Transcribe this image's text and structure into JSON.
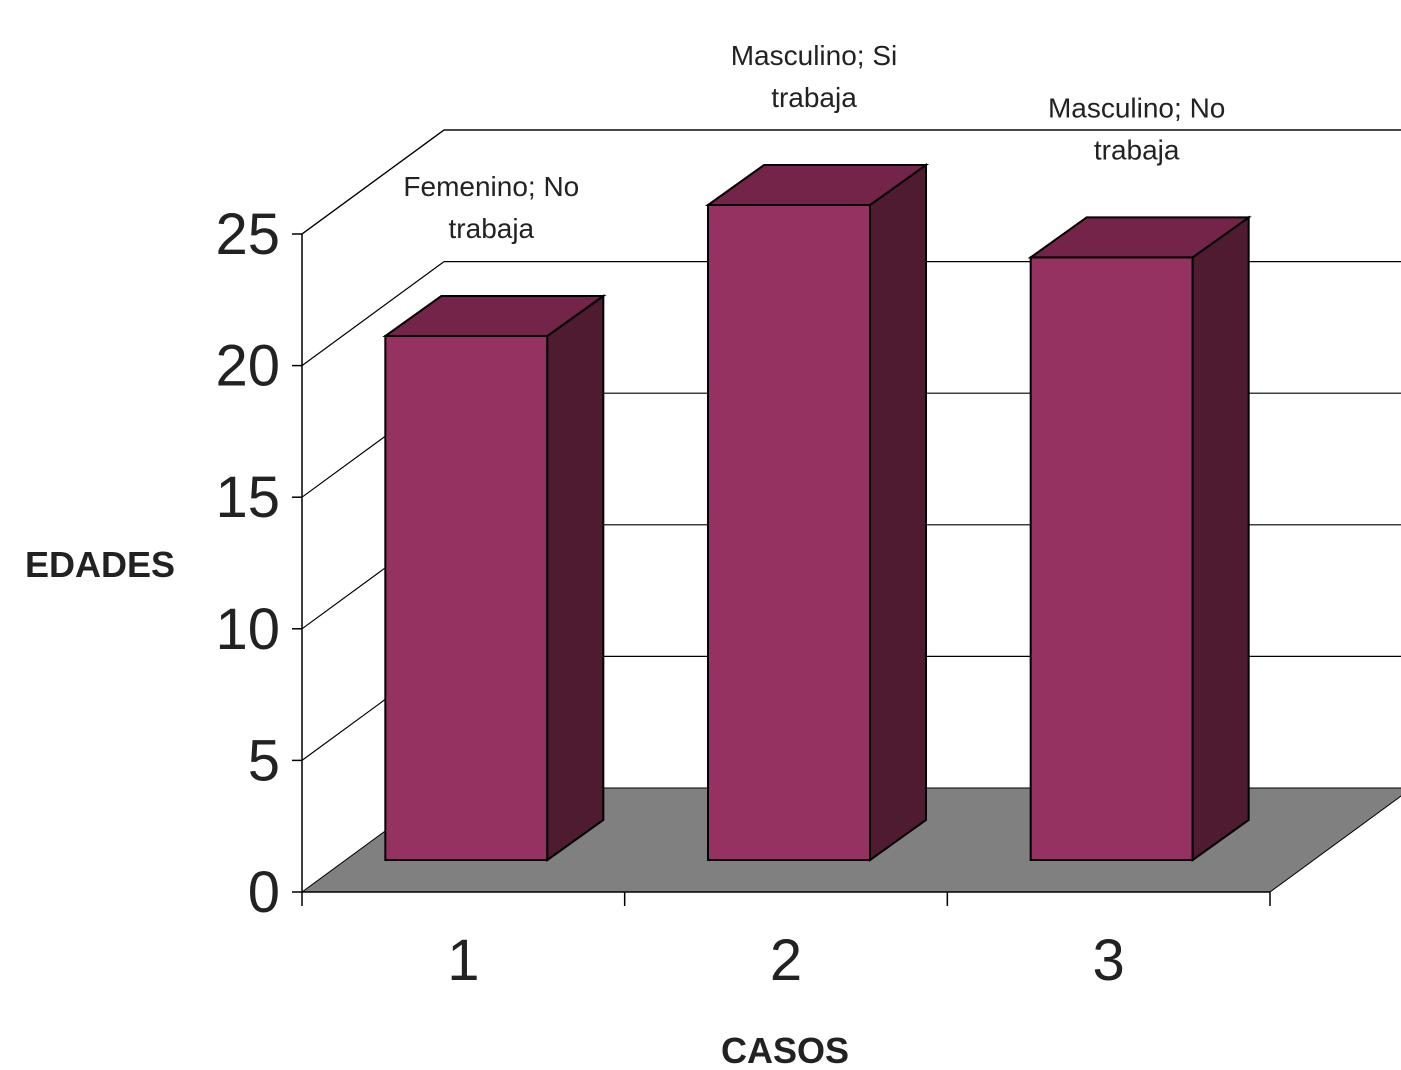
{
  "chart_data": {
    "type": "bar",
    "categories": [
      "1",
      "2",
      "3"
    ],
    "values": [
      20,
      25,
      23
    ],
    "data_labels": [
      [
        "Femenino; No",
        "trabaja"
      ],
      [
        "Masculino; Si",
        "trabaja"
      ],
      [
        "Masculino; No",
        "trabaja"
      ]
    ],
    "xlabel": "CASOS",
    "ylabel": "EDADES",
    "ylim": [
      0,
      25
    ],
    "yticks": [
      "0",
      "5",
      "10",
      "15",
      "20",
      "25"
    ],
    "grid": true,
    "three_d": true,
    "legend": "none"
  },
  "colors": {
    "bar_front": "#963262",
    "bar_top": "#742448",
    "bar_side": "#4e1b31",
    "floor": "#808080"
  }
}
